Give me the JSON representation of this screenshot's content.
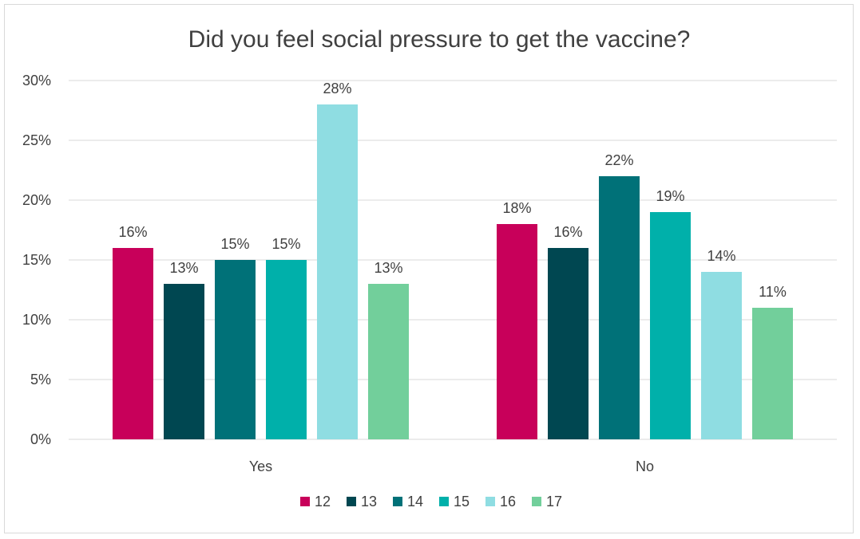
{
  "chart_data": {
    "type": "bar",
    "title": "Did you feel social pressure to get the vaccine?",
    "xlabel": "",
    "ylabel": "",
    "categories": [
      "Yes",
      "No"
    ],
    "ylim": [
      0,
      30
    ],
    "yticks": [
      "0%",
      "5%",
      "10%",
      "15%",
      "20%",
      "25%",
      "30%"
    ],
    "ytick_values": [
      0,
      5,
      10,
      15,
      20,
      25,
      30
    ],
    "grid": true,
    "legend_position": "bottom",
    "series": [
      {
        "name": "12",
        "color": "#c8005a",
        "values": [
          16,
          18
        ],
        "labels": [
          "16%",
          "18%"
        ]
      },
      {
        "name": "13",
        "color": "#004751",
        "values": [
          13,
          16
        ],
        "labels": [
          "13%",
          "16%"
        ]
      },
      {
        "name": "14",
        "color": "#007178",
        "values": [
          15,
          22
        ],
        "labels": [
          "15%",
          "22%"
        ]
      },
      {
        "name": "15",
        "color": "#00b0aa",
        "values": [
          15,
          19
        ],
        "labels": [
          "15%",
          "19%"
        ]
      },
      {
        "name": "16",
        "color": "#8fdde2",
        "values": [
          28,
          14
        ],
        "labels": [
          "28%",
          "14%"
        ]
      },
      {
        "name": "17",
        "color": "#72cf9b",
        "values": [
          13,
          11
        ],
        "labels": [
          "13%",
          "11%"
        ]
      }
    ]
  }
}
